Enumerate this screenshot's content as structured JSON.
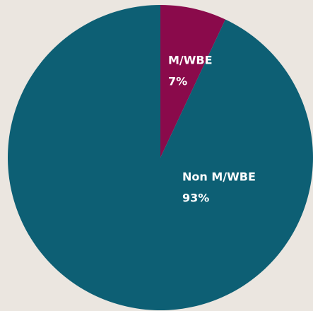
{
  "chart_data": {
    "type": "pie",
    "categories": [
      "M/WBE",
      "Non M/WBE"
    ],
    "values": [
      7,
      93
    ],
    "value_labels": [
      "7%",
      "93%"
    ],
    "colors": [
      "#8a0a4b",
      "#0d5f74"
    ]
  }
}
